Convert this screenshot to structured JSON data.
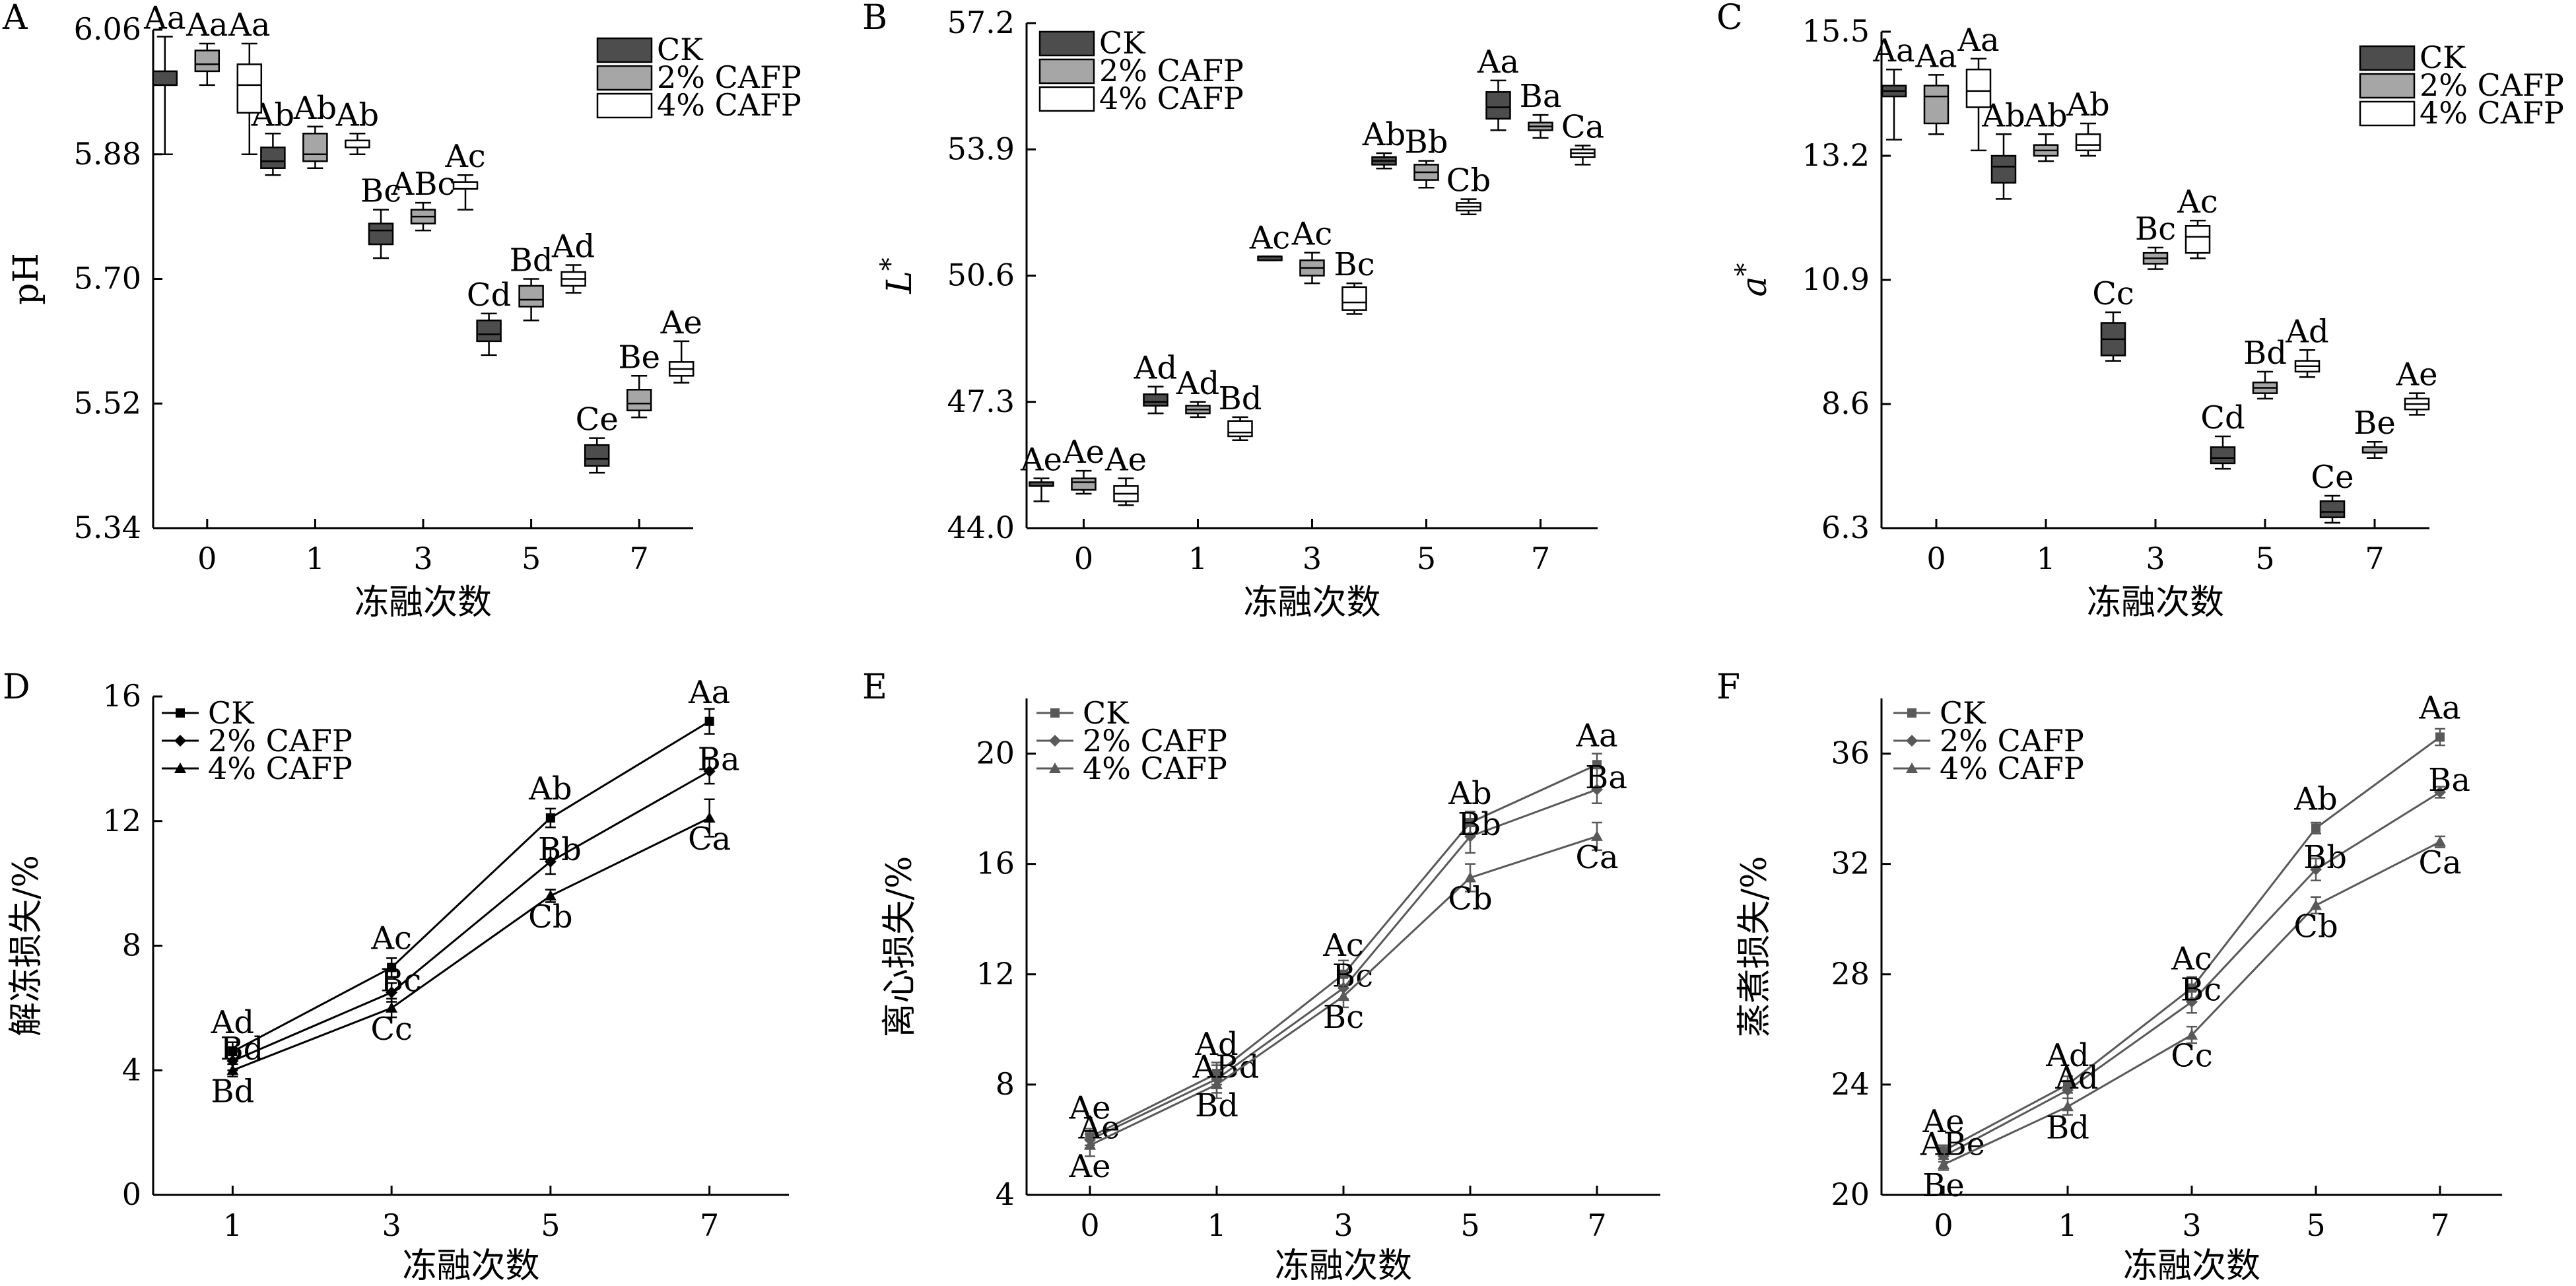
{
  "chart_data": [
    {
      "panel": "A",
      "type": "box",
      "xlabel": "冻融次数",
      "ylabel": "pH",
      "categories": [
        "0",
        "1",
        "3",
        "5",
        "7"
      ],
      "yticks": [
        "5.34",
        "5.52",
        "5.70",
        "5.88",
        "6.06"
      ],
      "ylim": [
        5.34,
        6.06
      ],
      "legend": [
        "CK",
        "2% CAFP",
        "4% CAFP"
      ],
      "series": [
        {
          "name": "CK",
          "boxes": [
            [
              5.88,
              5.98,
              5.98,
              6.0,
              6.05
            ],
            [
              5.85,
              5.86,
              5.87,
              5.89,
              5.91
            ],
            [
              5.73,
              5.75,
              5.77,
              5.78,
              5.8
            ],
            [
              5.59,
              5.61,
              5.62,
              5.64,
              5.65
            ],
            [
              5.42,
              5.43,
              5.44,
              5.46,
              5.47
            ]
          ],
          "labels": [
            "Aa",
            "Ab",
            "Bc",
            "Cd",
            "Ce"
          ]
        },
        {
          "name": "2% CAFP",
          "boxes": [
            [
              5.98,
              6.0,
              6.01,
              6.03,
              6.04
            ],
            [
              5.86,
              5.87,
              5.88,
              5.91,
              5.92
            ],
            [
              5.77,
              5.78,
              5.79,
              5.8,
              5.81
            ],
            [
              5.64,
              5.66,
              5.67,
              5.69,
              5.7
            ],
            [
              5.5,
              5.51,
              5.52,
              5.54,
              5.56
            ]
          ],
          "labels": [
            "Aa",
            "Ab",
            "ABc",
            "Bd",
            "Be"
          ]
        },
        {
          "name": "4% CAFP",
          "boxes": [
            [
              5.88,
              5.94,
              5.98,
              6.01,
              6.04
            ],
            [
              5.88,
              5.89,
              5.89,
              5.9,
              5.91
            ],
            [
              5.8,
              5.83,
              5.83,
              5.84,
              5.85
            ],
            [
              5.68,
              5.69,
              5.7,
              5.71,
              5.72
            ],
            [
              5.55,
              5.56,
              5.57,
              5.58,
              5.61
            ]
          ],
          "labels": [
            "Aa",
            "Ab",
            "Ac",
            "Ad",
            "Ae"
          ]
        }
      ]
    },
    {
      "panel": "B",
      "type": "box",
      "xlabel": "冻融次数",
      "ylabel": "L*",
      "categories": [
        "0",
        "1",
        "3",
        "5",
        "7"
      ],
      "yticks": [
        "44.0",
        "47.3",
        "50.6",
        "53.9",
        "57.2"
      ],
      "ylim": [
        44.0,
        57.2
      ],
      "legend": [
        "CK",
        "2% CAFP",
        "4% CAFP"
      ],
      "series": [
        {
          "name": "CK",
          "boxes": [
            [
              44.7,
              45.1,
              45.1,
              45.2,
              45.3
            ],
            [
              47.0,
              47.2,
              47.3,
              47.5,
              47.7
            ],
            [
              51.0,
              51.0,
              51.1,
              51.1,
              51.1
            ],
            [
              53.4,
              53.5,
              53.6,
              53.7,
              53.8
            ],
            [
              54.4,
              54.7,
              55.0,
              55.4,
              55.7
            ]
          ],
          "labels": [
            "Ae",
            "Ad",
            "Ac",
            "Ab",
            "Aa"
          ]
        },
        {
          "name": "2% CAFP",
          "boxes": [
            [
              44.9,
              45.0,
              45.2,
              45.3,
              45.5
            ],
            [
              46.9,
              47.0,
              47.1,
              47.2,
              47.3
            ],
            [
              50.4,
              50.6,
              50.8,
              51.0,
              51.2
            ],
            [
              52.9,
              53.1,
              53.3,
              53.5,
              53.6
            ],
            [
              54.2,
              54.4,
              54.5,
              54.6,
              54.8
            ]
          ],
          "labels": [
            "Ae",
            "Ad",
            "Ac",
            "Bb",
            "Ba"
          ]
        },
        {
          "name": "4% CAFP",
          "boxes": [
            [
              44.6,
              44.7,
              44.9,
              45.1,
              45.3
            ],
            [
              46.3,
              46.4,
              46.5,
              46.8,
              46.9
            ],
            [
              49.6,
              49.7,
              49.9,
              50.3,
              50.4
            ],
            [
              52.2,
              52.3,
              52.4,
              52.5,
              52.6
            ],
            [
              53.5,
              53.7,
              53.8,
              53.9,
              54.0
            ]
          ],
          "labels": [
            "Ae",
            "Bd",
            "Bc",
            "Cb",
            "Ca"
          ]
        }
      ]
    },
    {
      "panel": "C",
      "type": "box",
      "xlabel": "冻融次数",
      "ylabel": "a*",
      "categories": [
        "0",
        "1",
        "3",
        "5",
        "7"
      ],
      "yticks": [
        "6.3",
        "8.6",
        "10.9",
        "13.2",
        "15.5"
      ],
      "ylim": [
        6.3,
        15.5
      ],
      "legend": [
        "CK",
        "2% CAFP",
        "4% CAFP"
      ],
      "series": [
        {
          "name": "CK",
          "boxes": [
            [
              13.5,
              14.3,
              14.4,
              14.5,
              14.8
            ],
            [
              12.4,
              12.7,
              13.0,
              13.2,
              13.6
            ],
            [
              9.4,
              9.5,
              9.8,
              10.1,
              10.3
            ],
            [
              7.4,
              7.5,
              7.6,
              7.8,
              8.0
            ],
            [
              6.4,
              6.5,
              6.6,
              6.8,
              6.9
            ]
          ],
          "labels": [
            "Aa",
            "Ab",
            "Cc",
            "Cd",
            "Ce"
          ]
        },
        {
          "name": "2% CAFP",
          "boxes": [
            [
              13.6,
              13.8,
              14.3,
              14.5,
              14.7
            ],
            [
              13.1,
              13.2,
              13.3,
              13.4,
              13.6
            ],
            [
              11.1,
              11.2,
              11.3,
              11.4,
              11.5
            ],
            [
              8.7,
              8.8,
              8.9,
              9.0,
              9.2
            ],
            [
              7.6,
              7.7,
              7.7,
              7.8,
              7.9
            ]
          ],
          "labels": [
            "Aa",
            "Ab",
            "Bc",
            "Bd",
            "Be"
          ]
        },
        {
          "name": "4% CAFP",
          "boxes": [
            [
              13.3,
              14.1,
              14.4,
              14.8,
              15.0
            ],
            [
              13.2,
              13.3,
              13.4,
              13.6,
              13.8
            ],
            [
              11.3,
              11.4,
              11.7,
              11.9,
              12.0
            ],
            [
              9.1,
              9.2,
              9.3,
              9.4,
              9.6
            ],
            [
              8.4,
              8.5,
              8.6,
              8.7,
              8.8
            ]
          ],
          "labels": [
            "Aa",
            "Ab",
            "Ac",
            "Ad",
            "Ae"
          ]
        }
      ]
    },
    {
      "panel": "D",
      "type": "line",
      "xlabel": "冻融次数",
      "ylabel": "解冻损失/%",
      "categories": [
        "1",
        "3",
        "5",
        "7"
      ],
      "yticks": [
        "0",
        "4",
        "8",
        "12",
        "16"
      ],
      "ylim": [
        0,
        16
      ],
      "legend": [
        "CK",
        "2% CAFP",
        "4% CAFP"
      ],
      "series": [
        {
          "name": "CK",
          "values": [
            4.6,
            7.3,
            12.1,
            15.2
          ],
          "err": [
            0.3,
            0.3,
            0.3,
            0.4
          ],
          "labels": [
            "Ad",
            "Ac",
            "Ab",
            "Aa"
          ]
        },
        {
          "name": "2% CAFP",
          "values": [
            4.3,
            6.5,
            10.7,
            13.6
          ],
          "err": [
            0.3,
            0.3,
            0.4,
            0.4
          ],
          "labels": [
            "Bd",
            "Bc",
            "Bb",
            "Ba"
          ]
        },
        {
          "name": "4% CAFP",
          "values": [
            4.0,
            6.0,
            9.6,
            12.1
          ],
          "err": [
            0.2,
            0.3,
            0.2,
            0.6
          ],
          "labels": [
            "Bd",
            "Cc",
            "Cb",
            "Ca"
          ]
        }
      ]
    },
    {
      "panel": "E",
      "type": "line",
      "xlabel": "冻融次数",
      "ylabel": "离心损失/%",
      "categories": [
        "0",
        "1",
        "3",
        "5",
        "7"
      ],
      "yticks": [
        "4",
        "8",
        "12",
        "16",
        "20"
      ],
      "ylim": [
        4,
        22
      ],
      "legend": [
        "CK",
        "2% CAFP",
        "4% CAFP"
      ],
      "series": [
        {
          "name": "CK",
          "values": [
            6.1,
            8.4,
            12.0,
            17.5,
            19.6
          ],
          "err": [
            0.3,
            0.4,
            0.5,
            0.4,
            0.4
          ],
          "labels": [
            "Ae",
            "Ad",
            "Ac",
            "Ab",
            "Aa"
          ]
        },
        {
          "name": "2% CAFP",
          "values": [
            6.0,
            8.2,
            11.5,
            17.0,
            18.7
          ],
          "err": [
            0.3,
            0.5,
            0.4,
            0.6,
            0.5
          ],
          "labels": [
            "Ae",
            "ABd",
            "Bc",
            "Bb",
            "Ba"
          ]
        },
        {
          "name": "4% CAFP",
          "values": [
            5.8,
            8.0,
            11.2,
            15.5,
            17.0
          ],
          "err": [
            0.4,
            0.5,
            0.4,
            0.5,
            0.5
          ],
          "labels": [
            "Ae",
            "Bd",
            "Bc",
            "Cb",
            "Ca"
          ]
        }
      ]
    },
    {
      "panel": "F",
      "type": "line",
      "xlabel": "冻融次数",
      "ylabel": "蒸煮损失/%",
      "categories": [
        "0",
        "1",
        "3",
        "5",
        "7"
      ],
      "yticks": [
        "20",
        "24",
        "28",
        "32",
        "36"
      ],
      "ylim": [
        20,
        38
      ],
      "legend": [
        "CK",
        "2% CAFP",
        "4% CAFP"
      ],
      "series": [
        {
          "name": "CK",
          "values": [
            21.6,
            24.0,
            27.5,
            33.3,
            36.6
          ],
          "err": [
            0.2,
            0.3,
            0.4,
            0.2,
            0.3
          ],
          "labels": [
            "Ae",
            "Ad",
            "Ac",
            "Ab",
            "Aa"
          ]
        },
        {
          "name": "2% CAFP",
          "values": [
            21.4,
            23.8,
            27.0,
            31.8,
            34.6
          ],
          "err": [
            0.2,
            0.3,
            0.4,
            0.4,
            0.2
          ],
          "labels": [
            "ABe",
            "Ad",
            "Bc",
            "Bb",
            "Ba"
          ]
        },
        {
          "name": "4% CAFP",
          "values": [
            21.1,
            23.2,
            25.8,
            30.5,
            32.8
          ],
          "err": [
            0.2,
            0.3,
            0.3,
            0.3,
            0.2
          ],
          "labels": [
            "Be",
            "Bd",
            "Cc",
            "Cb",
            "Ca"
          ]
        }
      ]
    }
  ]
}
